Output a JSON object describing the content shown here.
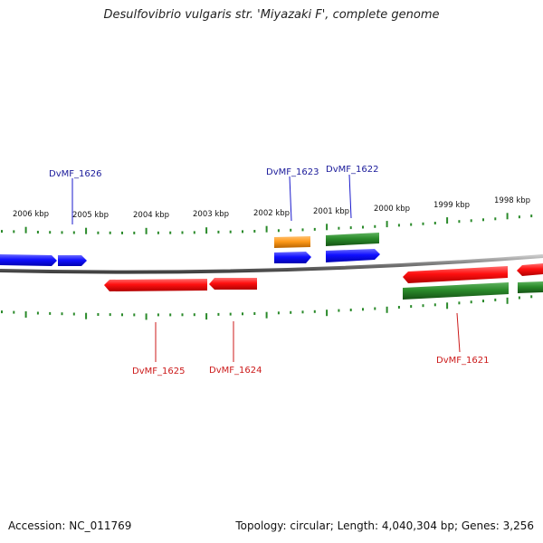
{
  "title": "Desulfovibrio vulgaris str. 'Miyazaki F', complete genome",
  "footer": {
    "accession": "Accession: NC_011769",
    "summary": "Topology: circular; Length: 4,040,304 bp; Genes: 3,256"
  },
  "colors": {
    "forward_cds": "#1a1aff",
    "reverse_cds": "#ff1a1a",
    "rna": "#ff9a1a",
    "gene_feature": "#2a8a2a",
    "backbone": "#8a8a8a",
    "tick": "#2a8a2a",
    "label_forward": "#1a1a9a",
    "label_reverse": "#cc1a1a"
  },
  "scale_labels": [
    "2006 kbp",
    "2005 kbp",
    "2004 kbp",
    "2003 kbp",
    "2002 kbp",
    "2001 kbp",
    "2000 kbp",
    "1999 kbp",
    "1998 kbp"
  ],
  "gene_labels": {
    "top": [
      "DvMF_1626",
      "DvMF_1623",
      "DvMF_1622"
    ],
    "bottom": [
      "DvMF_1625",
      "DvMF_1624",
      "DvMF_1621"
    ]
  }
}
